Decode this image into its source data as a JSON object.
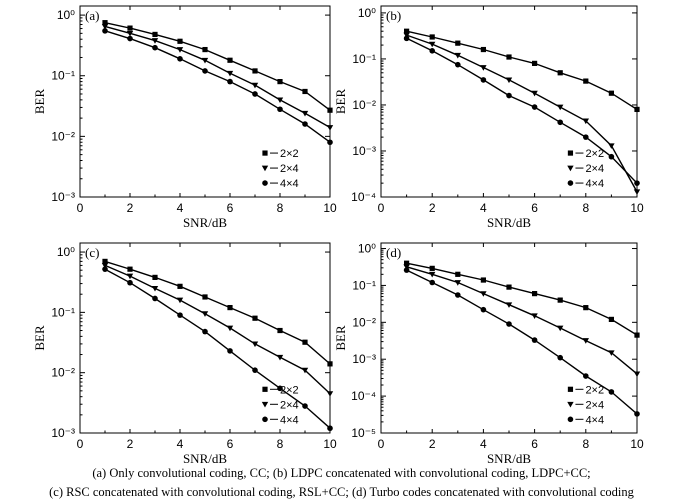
{
  "caption": {
    "line1": "(a)  Only convolutional coding, CC; (b) LDPC concatenated with convolutional coding, LDPC+CC;",
    "line2": "(c) RSC concatenated with convolutional coding, RSL+CC; (d) Turbo codes concatenated with convolutional coding"
  },
  "chart_data": [
    {
      "type": "line",
      "panel": "(a)",
      "xlabel": "SNR/dB",
      "ylabel": "BER",
      "xlim": [
        0,
        10
      ],
      "x_ticks": [
        "0",
        "2",
        "4",
        "6",
        "8",
        "10"
      ],
      "yscale": "log",
      "y_ticks": [
        "10^0",
        "10^-1",
        "10^-2",
        "10^-3"
      ],
      "ylim_exp": [
        -3,
        0.15
      ],
      "legend_position": "right",
      "x": [
        1,
        2,
        3,
        4,
        5,
        6,
        7,
        8,
        9,
        10
      ],
      "series": [
        {
          "name": "2×2",
          "marker": "square",
          "values": [
            0.75,
            0.61,
            0.48,
            0.37,
            0.27,
            0.18,
            0.12,
            0.08,
            0.055,
            0.027
          ]
        },
        {
          "name": "2×4",
          "marker": "triangle-down",
          "values": [
            0.65,
            0.5,
            0.38,
            0.27,
            0.18,
            0.11,
            0.07,
            0.04,
            0.024,
            0.014
          ]
        },
        {
          "name": "4×4",
          "marker": "circle",
          "values": [
            0.55,
            0.41,
            0.29,
            0.19,
            0.12,
            0.08,
            0.05,
            0.028,
            0.016,
            0.008
          ]
        }
      ]
    },
    {
      "type": "line",
      "panel": "(b)",
      "xlabel": "SNR/dB",
      "ylabel": "BER",
      "xlim": [
        0,
        10
      ],
      "x_ticks": [
        "0",
        "2",
        "4",
        "6",
        "8",
        "10"
      ],
      "yscale": "log",
      "y_ticks": [
        "10^0",
        "10^-1",
        "10^-2",
        "10^-3",
        "10^-4"
      ],
      "ylim_exp": [
        -4,
        0.15
      ],
      "legend_position": "right",
      "x": [
        1,
        2,
        3,
        4,
        5,
        6,
        7,
        8,
        9,
        10
      ],
      "series": [
        {
          "name": "2×2",
          "marker": "square",
          "values": [
            0.4,
            0.3,
            0.22,
            0.16,
            0.11,
            0.08,
            0.05,
            0.033,
            0.018,
            0.008
          ]
        },
        {
          "name": "2×4",
          "marker": "triangle-down",
          "values": [
            0.33,
            0.21,
            0.12,
            0.065,
            0.035,
            0.018,
            0.009,
            0.0045,
            0.0013,
            0.00013
          ]
        },
        {
          "name": "4×4",
          "marker": "circle",
          "values": [
            0.28,
            0.15,
            0.075,
            0.035,
            0.016,
            0.009,
            0.0042,
            0.002,
            0.00075,
            0.0002
          ]
        }
      ]
    },
    {
      "type": "line",
      "panel": "(c)",
      "xlabel": "SNR/dB",
      "ylabel": "BER",
      "xlim": [
        0,
        10
      ],
      "x_ticks": [
        "0",
        "2",
        "4",
        "6",
        "8",
        "10"
      ],
      "yscale": "log",
      "y_ticks": [
        "10^0",
        "10^-1",
        "10^-2",
        "10^-3"
      ],
      "ylim_exp": [
        -3,
        0.15
      ],
      "legend_position": "right",
      "x": [
        1,
        2,
        3,
        4,
        5,
        6,
        7,
        8,
        9,
        10
      ],
      "series": [
        {
          "name": "2×2",
          "marker": "square",
          "values": [
            0.7,
            0.52,
            0.38,
            0.27,
            0.18,
            0.12,
            0.08,
            0.05,
            0.032,
            0.014
          ]
        },
        {
          "name": "2×4",
          "marker": "triangle-down",
          "values": [
            0.6,
            0.4,
            0.25,
            0.16,
            0.095,
            0.055,
            0.03,
            0.018,
            0.011,
            0.0045
          ]
        },
        {
          "name": "4×4",
          "marker": "circle",
          "values": [
            0.52,
            0.31,
            0.17,
            0.09,
            0.048,
            0.023,
            0.011,
            0.0055,
            0.0028,
            0.0012
          ]
        }
      ]
    },
    {
      "type": "line",
      "panel": "(d)",
      "xlabel": "SNR/dB",
      "ylabel": "BER",
      "xlim": [
        0,
        10
      ],
      "x_ticks": [
        "0",
        "2",
        "4",
        "6",
        "8",
        "10"
      ],
      "yscale": "log",
      "y_ticks": [
        "10^0",
        "10^-1",
        "10^-2",
        "10^-3",
        "10^-4",
        "10^-5"
      ],
      "ylim_exp": [
        -5,
        0.15
      ],
      "legend_position": "right",
      "x": [
        1,
        2,
        3,
        4,
        5,
        6,
        7,
        8,
        9,
        10
      ],
      "series": [
        {
          "name": "2×2",
          "marker": "square",
          "values": [
            0.4,
            0.29,
            0.2,
            0.14,
            0.09,
            0.06,
            0.04,
            0.025,
            0.012,
            0.0045
          ]
        },
        {
          "name": "2×4",
          "marker": "triangle-down",
          "values": [
            0.32,
            0.2,
            0.12,
            0.06,
            0.03,
            0.015,
            0.007,
            0.0032,
            0.0015,
            0.0004
          ]
        },
        {
          "name": "4×4",
          "marker": "circle",
          "values": [
            0.26,
            0.12,
            0.055,
            0.022,
            0.009,
            0.0033,
            0.0011,
            0.00035,
            0.00013,
            3.3e-05
          ]
        }
      ]
    }
  ]
}
